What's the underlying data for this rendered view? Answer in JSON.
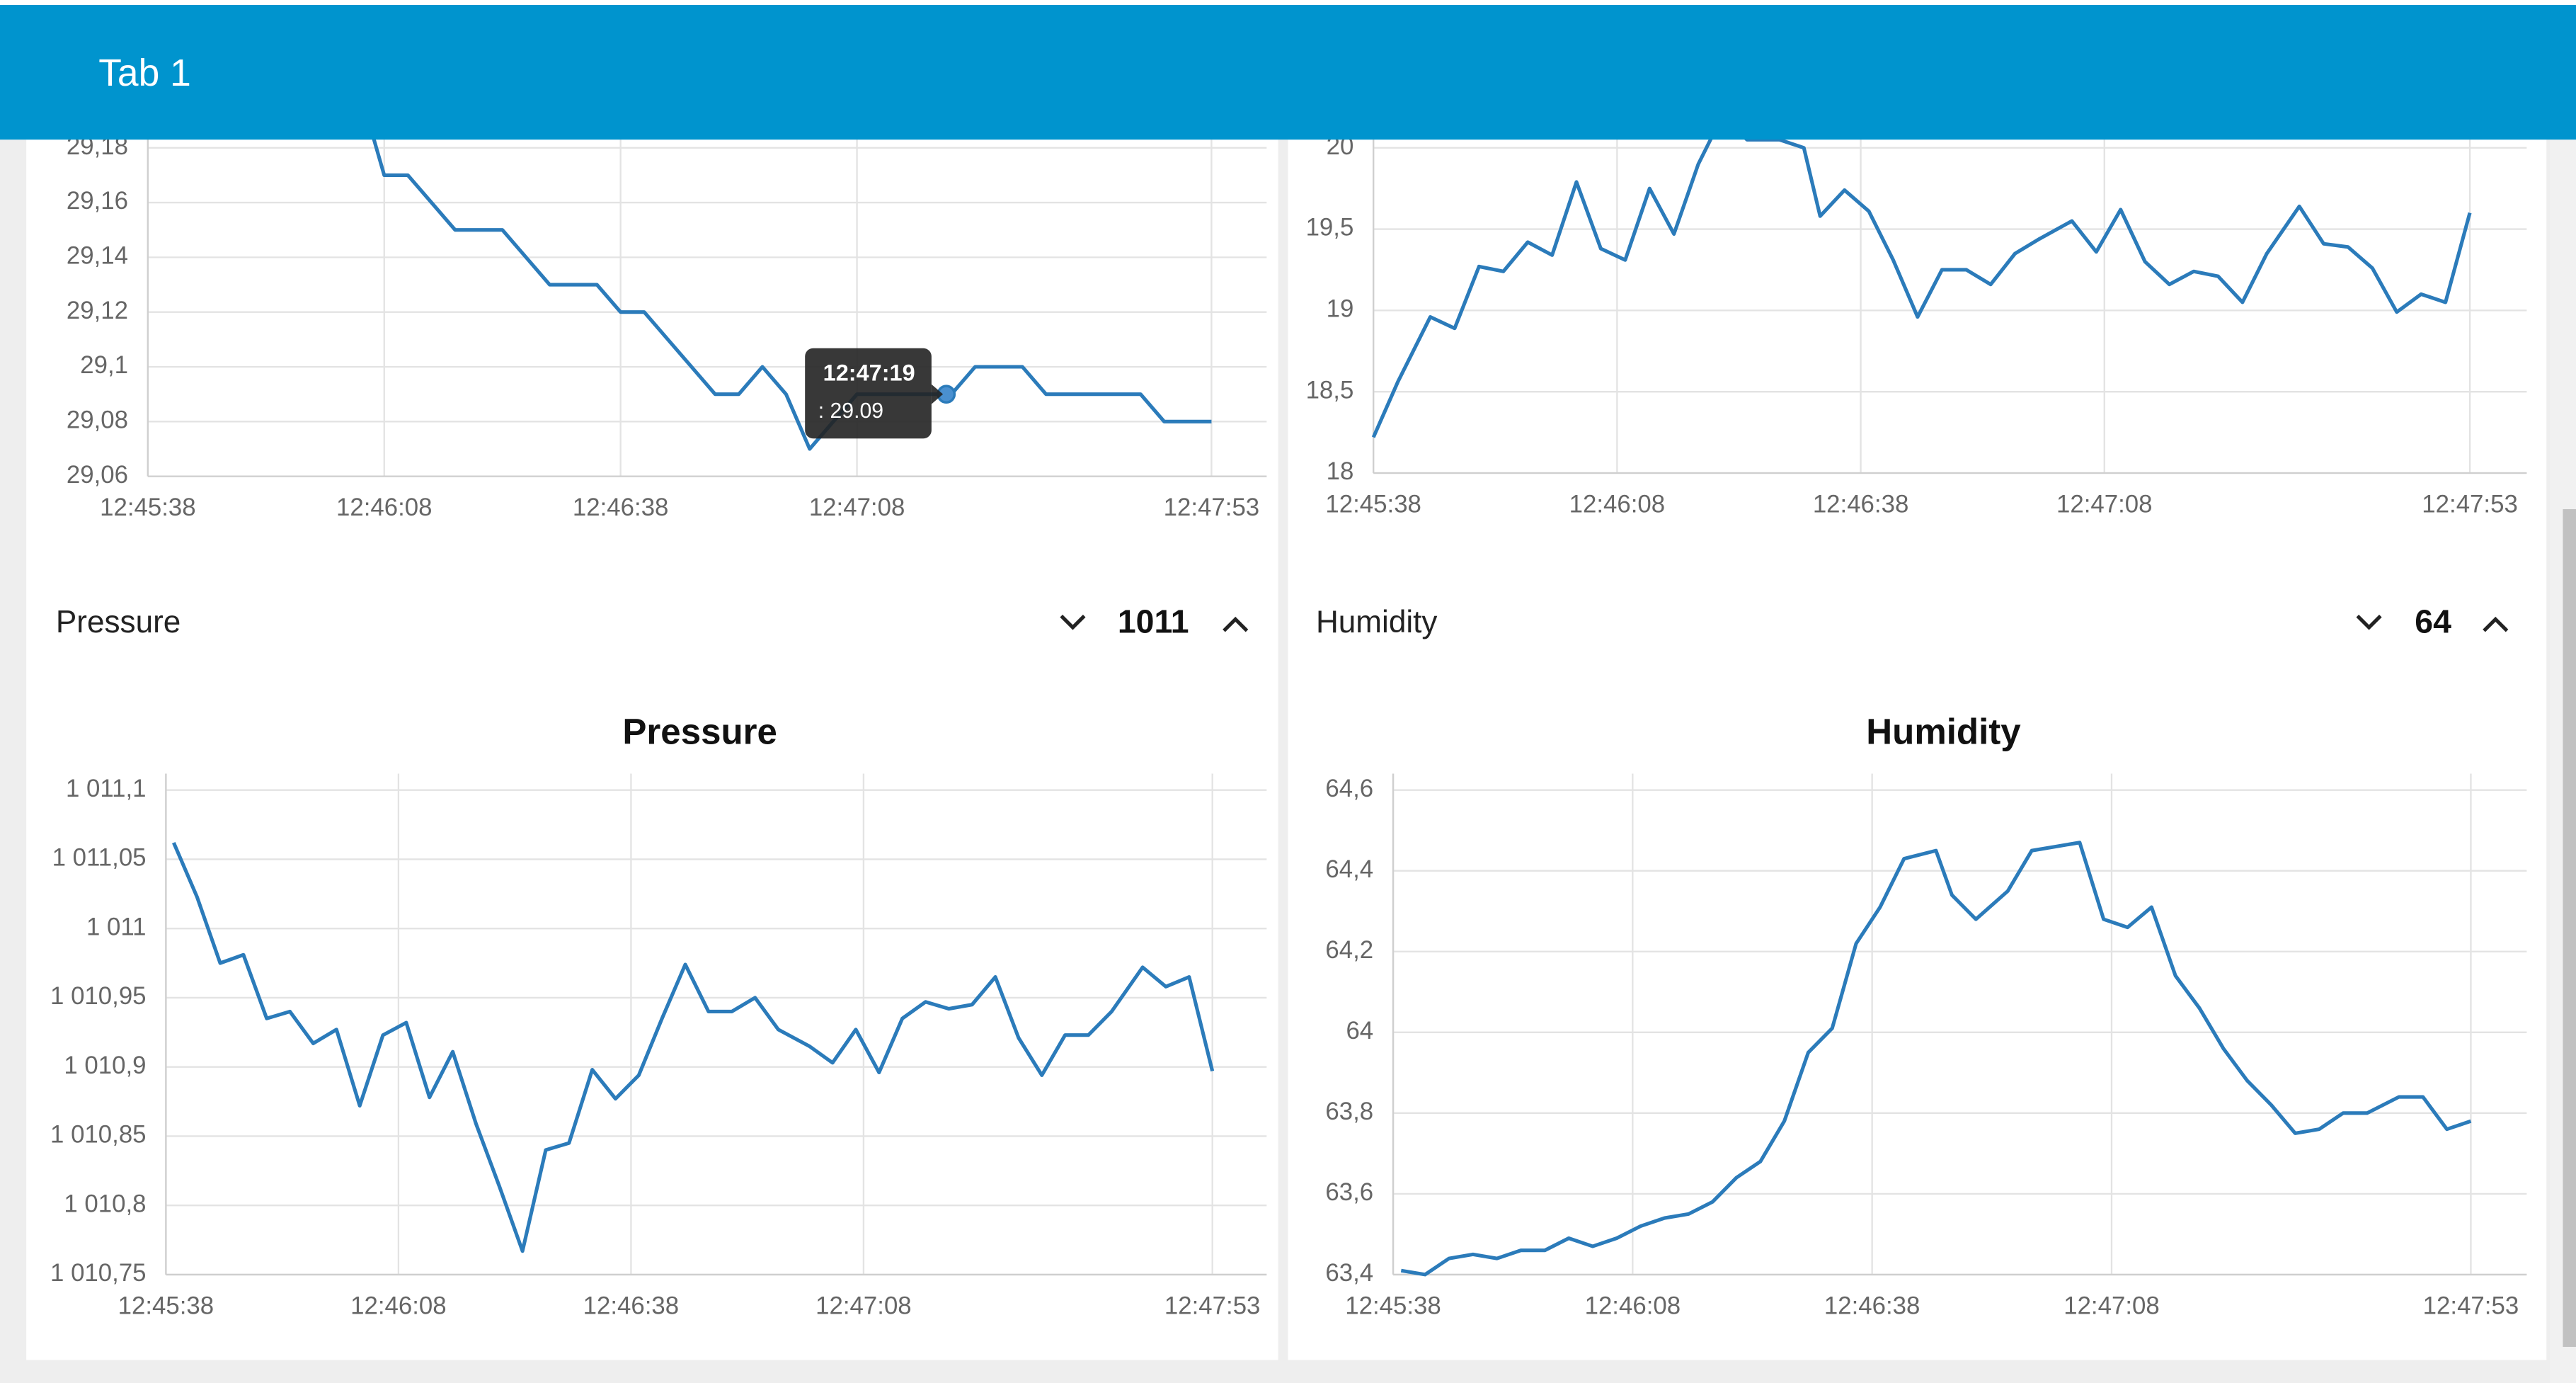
{
  "header": {
    "title": "Tab 1"
  },
  "widgets": [
    {
      "label": "Pressure",
      "value": 1011
    },
    {
      "label": "Humidity",
      "value": 64
    }
  ],
  "tooltip": {
    "title": "12:47:19",
    "body": ": 29.09"
  },
  "chart_data": [
    {
      "type": "line",
      "color": "#2b7bba",
      "grid": true,
      "x": [
        "12:46:05",
        "12:46:08",
        "12:46:11",
        "12:46:14",
        "12:46:17",
        "12:46:20",
        "12:46:23",
        "12:46:26",
        "12:46:29",
        "12:46:32",
        "12:46:35",
        "12:46:38",
        "12:46:41",
        "12:46:44",
        "12:46:47",
        "12:46:50",
        "12:46:53",
        "12:46:56",
        "12:46:59",
        "12:47:02",
        "12:47:05",
        "12:47:08",
        "12:47:11",
        "12:47:14",
        "12:47:17",
        "12:47:20",
        "12:47:23",
        "12:47:26",
        "12:47:29",
        "12:47:32",
        "12:47:35",
        "12:47:38",
        "12:47:41",
        "12:47:44",
        "12:47:47",
        "12:47:50",
        "12:47:53"
      ],
      "values": [
        29.2,
        29.17,
        29.17,
        29.16,
        29.15,
        29.15,
        29.15,
        29.14,
        29.13,
        29.13,
        29.13,
        29.12,
        29.12,
        29.11,
        29.1,
        29.09,
        29.09,
        29.1,
        29.09,
        29.07,
        29.08,
        29.09,
        29.09,
        29.09,
        29.09,
        29.09,
        29.1,
        29.1,
        29.1,
        29.09,
        29.09,
        29.09,
        29.09,
        29.09,
        29.08,
        29.08,
        29.08
      ],
      "xlim": [
        "12:45:38",
        "12:48:00"
      ],
      "xticks": [
        "12:45:38",
        "12:46:08",
        "12:46:38",
        "12:47:08",
        "12:47:53"
      ],
      "ylim": [
        29.06,
        29.18
      ],
      "yticks": [
        {
          "value": 29.06,
          "label": "29,06"
        },
        {
          "value": 29.08,
          "label": "29,08"
        },
        {
          "value": 29.1,
          "label": "29,1"
        },
        {
          "value": 29.12,
          "label": "29,12"
        },
        {
          "value": 29.14,
          "label": "29,14"
        },
        {
          "value": 29.16,
          "label": "29,16"
        },
        {
          "value": 29.18,
          "label": "29,18"
        }
      ]
    },
    {
      "type": "line",
      "color": "#2b7bba",
      "grid": true,
      "x": [
        "12:45:38",
        "12:45:41",
        "12:45:45",
        "12:45:48",
        "12:45:51",
        "12:45:54",
        "12:45:57",
        "12:46:00",
        "12:46:03",
        "12:46:06",
        "12:46:09",
        "12:46:12",
        "12:46:15",
        "12:46:18",
        "12:46:21",
        "12:46:24",
        "12:46:28",
        "12:46:31",
        "12:46:33",
        "12:46:36",
        "12:46:39",
        "12:46:42",
        "12:46:45",
        "12:46:48",
        "12:46:51",
        "12:46:54",
        "12:46:57",
        "12:47:00",
        "12:47:04",
        "12:47:07",
        "12:47:10",
        "12:47:13",
        "12:47:16",
        "12:47:19",
        "12:47:22",
        "12:47:25",
        "12:47:28",
        "12:47:32",
        "12:47:35",
        "12:47:38",
        "12:47:41",
        "12:47:44",
        "12:47:47",
        "12:47:50",
        "12:47:53"
      ],
      "values": [
        18.22,
        18.56,
        18.96,
        18.89,
        19.27,
        19.24,
        19.42,
        19.34,
        19.79,
        19.38,
        19.31,
        19.75,
        19.47,
        19.9,
        20.2,
        20.05,
        20.05,
        20.0,
        19.58,
        19.74,
        19.61,
        19.31,
        18.96,
        19.25,
        19.25,
        19.16,
        19.35,
        19.44,
        19.55,
        19.36,
        19.62,
        19.3,
        19.16,
        19.24,
        19.21,
        19.05,
        19.35,
        19.64,
        19.41,
        19.39,
        19.26,
        18.99,
        19.1,
        19.05,
        19.6
      ],
      "xlim": [
        "12:45:38",
        "12:48:00"
      ],
      "xticks": [
        "12:45:38",
        "12:46:08",
        "12:46:38",
        "12:47:08",
        "12:47:53"
      ],
      "ylim": [
        18,
        20
      ],
      "yticks": [
        18,
        {
          "value": 18.5,
          "label": "18,5"
        },
        19,
        {
          "value": 19.5,
          "label": "19,5"
        },
        20
      ]
    },
    {
      "type": "line",
      "title": "Pressure",
      "color": "#2b7bba",
      "grid": true,
      "x": [
        "12:45:39",
        "12:45:42",
        "12:45:45",
        "12:45:48",
        "12:45:51",
        "12:45:54",
        "12:45:57",
        "12:46:00",
        "12:46:03",
        "12:46:06",
        "12:46:09",
        "12:46:12",
        "12:46:15",
        "12:46:18",
        "12:46:21",
        "12:46:24",
        "12:46:27",
        "12:46:30",
        "12:46:33",
        "12:46:36",
        "12:46:39",
        "12:46:42",
        "12:46:45",
        "12:46:48",
        "12:46:51",
        "12:46:54",
        "12:46:57",
        "12:47:01",
        "12:47:04",
        "12:47:07",
        "12:47:10",
        "12:47:13",
        "12:47:16",
        "12:47:19",
        "12:47:22",
        "12:47:25",
        "12:47:28",
        "12:47:31",
        "12:47:34",
        "12:47:37",
        "12:47:40",
        "12:47:44",
        "12:47:47",
        "12:47:50",
        "12:47:53"
      ],
      "values": [
        1011.062,
        1011.023,
        1010.975,
        1010.981,
        1010.935,
        1010.94,
        1010.917,
        1010.927,
        1010.872,
        1010.923,
        1010.932,
        1010.878,
        1010.911,
        1010.859,
        1010.814,
        1010.767,
        1010.84,
        1010.845,
        1010.898,
        1010.877,
        1010.894,
        1010.935,
        1010.974,
        1010.94,
        1010.94,
        1010.95,
        1010.927,
        1010.915,
        1010.903,
        1010.927,
        1010.896,
        1010.935,
        1010.947,
        1010.942,
        1010.945,
        1010.965,
        1010.921,
        1010.894,
        1010.923,
        1010.923,
        1010.94,
        1010.972,
        1010.958,
        1010.965,
        1010.897
      ],
      "xlim": [
        "12:45:38",
        "12:48:00"
      ],
      "xticks": [
        "12:45:38",
        "12:46:08",
        "12:46:38",
        "12:47:08",
        "12:47:53"
      ],
      "ylim": [
        1010.75,
        1011.1
      ],
      "yticks": [
        {
          "value": 1010.75,
          "label": "1 010,75"
        },
        {
          "value": 1010.8,
          "label": "1 010,8"
        },
        {
          "value": 1010.85,
          "label": "1 010,85"
        },
        {
          "value": 1010.9,
          "label": "1 010,9"
        },
        {
          "value": 1010.95,
          "label": "1 010,95"
        },
        {
          "value": 1011,
          "label": "1 011"
        },
        {
          "value": 1011.05,
          "label": "1 011,05"
        },
        {
          "value": 1011.1,
          "label": "1 011,1"
        }
      ]
    },
    {
      "type": "line",
      "title": "Humidity",
      "color": "#2b7bba",
      "grid": true,
      "x": [
        "12:45:39",
        "12:45:42",
        "12:45:45",
        "12:45:48",
        "12:45:51",
        "12:45:54",
        "12:45:57",
        "12:46:00",
        "12:46:03",
        "12:46:06",
        "12:46:09",
        "12:46:12",
        "12:46:15",
        "12:46:18",
        "12:46:21",
        "12:46:24",
        "12:46:27",
        "12:46:30",
        "12:46:33",
        "12:46:36",
        "12:46:39",
        "12:46:42",
        "12:46:46",
        "12:46:48",
        "12:46:51",
        "12:46:55",
        "12:46:58",
        "12:47:01",
        "12:47:04",
        "12:47:07",
        "12:47:10",
        "12:47:13",
        "12:47:16",
        "12:47:19",
        "12:47:22",
        "12:47:25",
        "12:47:28",
        "12:47:31",
        "12:47:34",
        "12:47:37",
        "12:47:40",
        "12:47:44",
        "12:47:47",
        "12:47:50",
        "12:47:53"
      ],
      "values": [
        63.41,
        63.4,
        63.44,
        63.45,
        63.44,
        63.46,
        63.46,
        63.49,
        63.47,
        63.49,
        63.52,
        63.54,
        63.55,
        63.58,
        63.64,
        63.68,
        63.78,
        63.95,
        64.01,
        64.22,
        64.31,
        64.43,
        64.45,
        64.34,
        64.28,
        64.35,
        64.45,
        64.46,
        64.47,
        64.28,
        64.26,
        64.31,
        64.14,
        64.06,
        63.96,
        63.88,
        63.82,
        63.75,
        63.76,
        63.8,
        63.8,
        63.84,
        63.84,
        63.76,
        63.78
      ],
      "xlim": [
        "12:45:38",
        "12:48:00"
      ],
      "xticks": [
        "12:45:38",
        "12:46:08",
        "12:46:38",
        "12:47:08",
        "12:47:53"
      ],
      "ylim": [
        63.4,
        64.6
      ],
      "yticks": [
        {
          "value": 63.4,
          "label": "63,4"
        },
        {
          "value": 63.6,
          "label": "63,6"
        },
        {
          "value": 63.8,
          "label": "63,8"
        },
        {
          "value": 64,
          "label": "64"
        },
        {
          "value": 64.2,
          "label": "64,2"
        },
        {
          "value": 64.4,
          "label": "64,4"
        },
        {
          "value": 64.6,
          "label": "64,6"
        }
      ]
    }
  ]
}
